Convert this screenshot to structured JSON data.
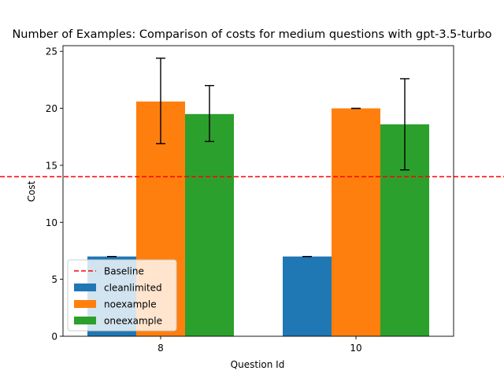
{
  "chart_data": {
    "type": "bar",
    "title": "Number of Examples: Comparison of costs for medium questions with gpt-3.5-turbo",
    "xlabel": "Question Id",
    "ylabel": "Cost",
    "categories": [
      "8",
      "10"
    ],
    "ylim": [
      0,
      25.5
    ],
    "yticks": [
      0,
      5,
      10,
      15,
      20,
      25
    ],
    "grid": false,
    "legend_position": "lower-left",
    "baseline": {
      "name": "Baseline",
      "value": 14,
      "color": "#ff0000",
      "style": "dashed"
    },
    "series": [
      {
        "name": "cleanlimited",
        "color": "#1f77b4",
        "values": [
          7.0,
          7.0
        ],
        "err_low": [
          7.0,
          7.0
        ],
        "err_high": [
          7.0,
          7.0
        ]
      },
      {
        "name": "noexample",
        "color": "#ff7f0e",
        "values": [
          20.6,
          20.0
        ],
        "err_low": [
          16.9,
          20.0
        ],
        "err_high": [
          24.4,
          20.0
        ]
      },
      {
        "name": "oneexample",
        "color": "#2ca02c",
        "values": [
          19.5,
          18.6
        ],
        "err_low": [
          17.1,
          14.6
        ],
        "err_high": [
          22.0,
          22.6
        ]
      }
    ]
  }
}
